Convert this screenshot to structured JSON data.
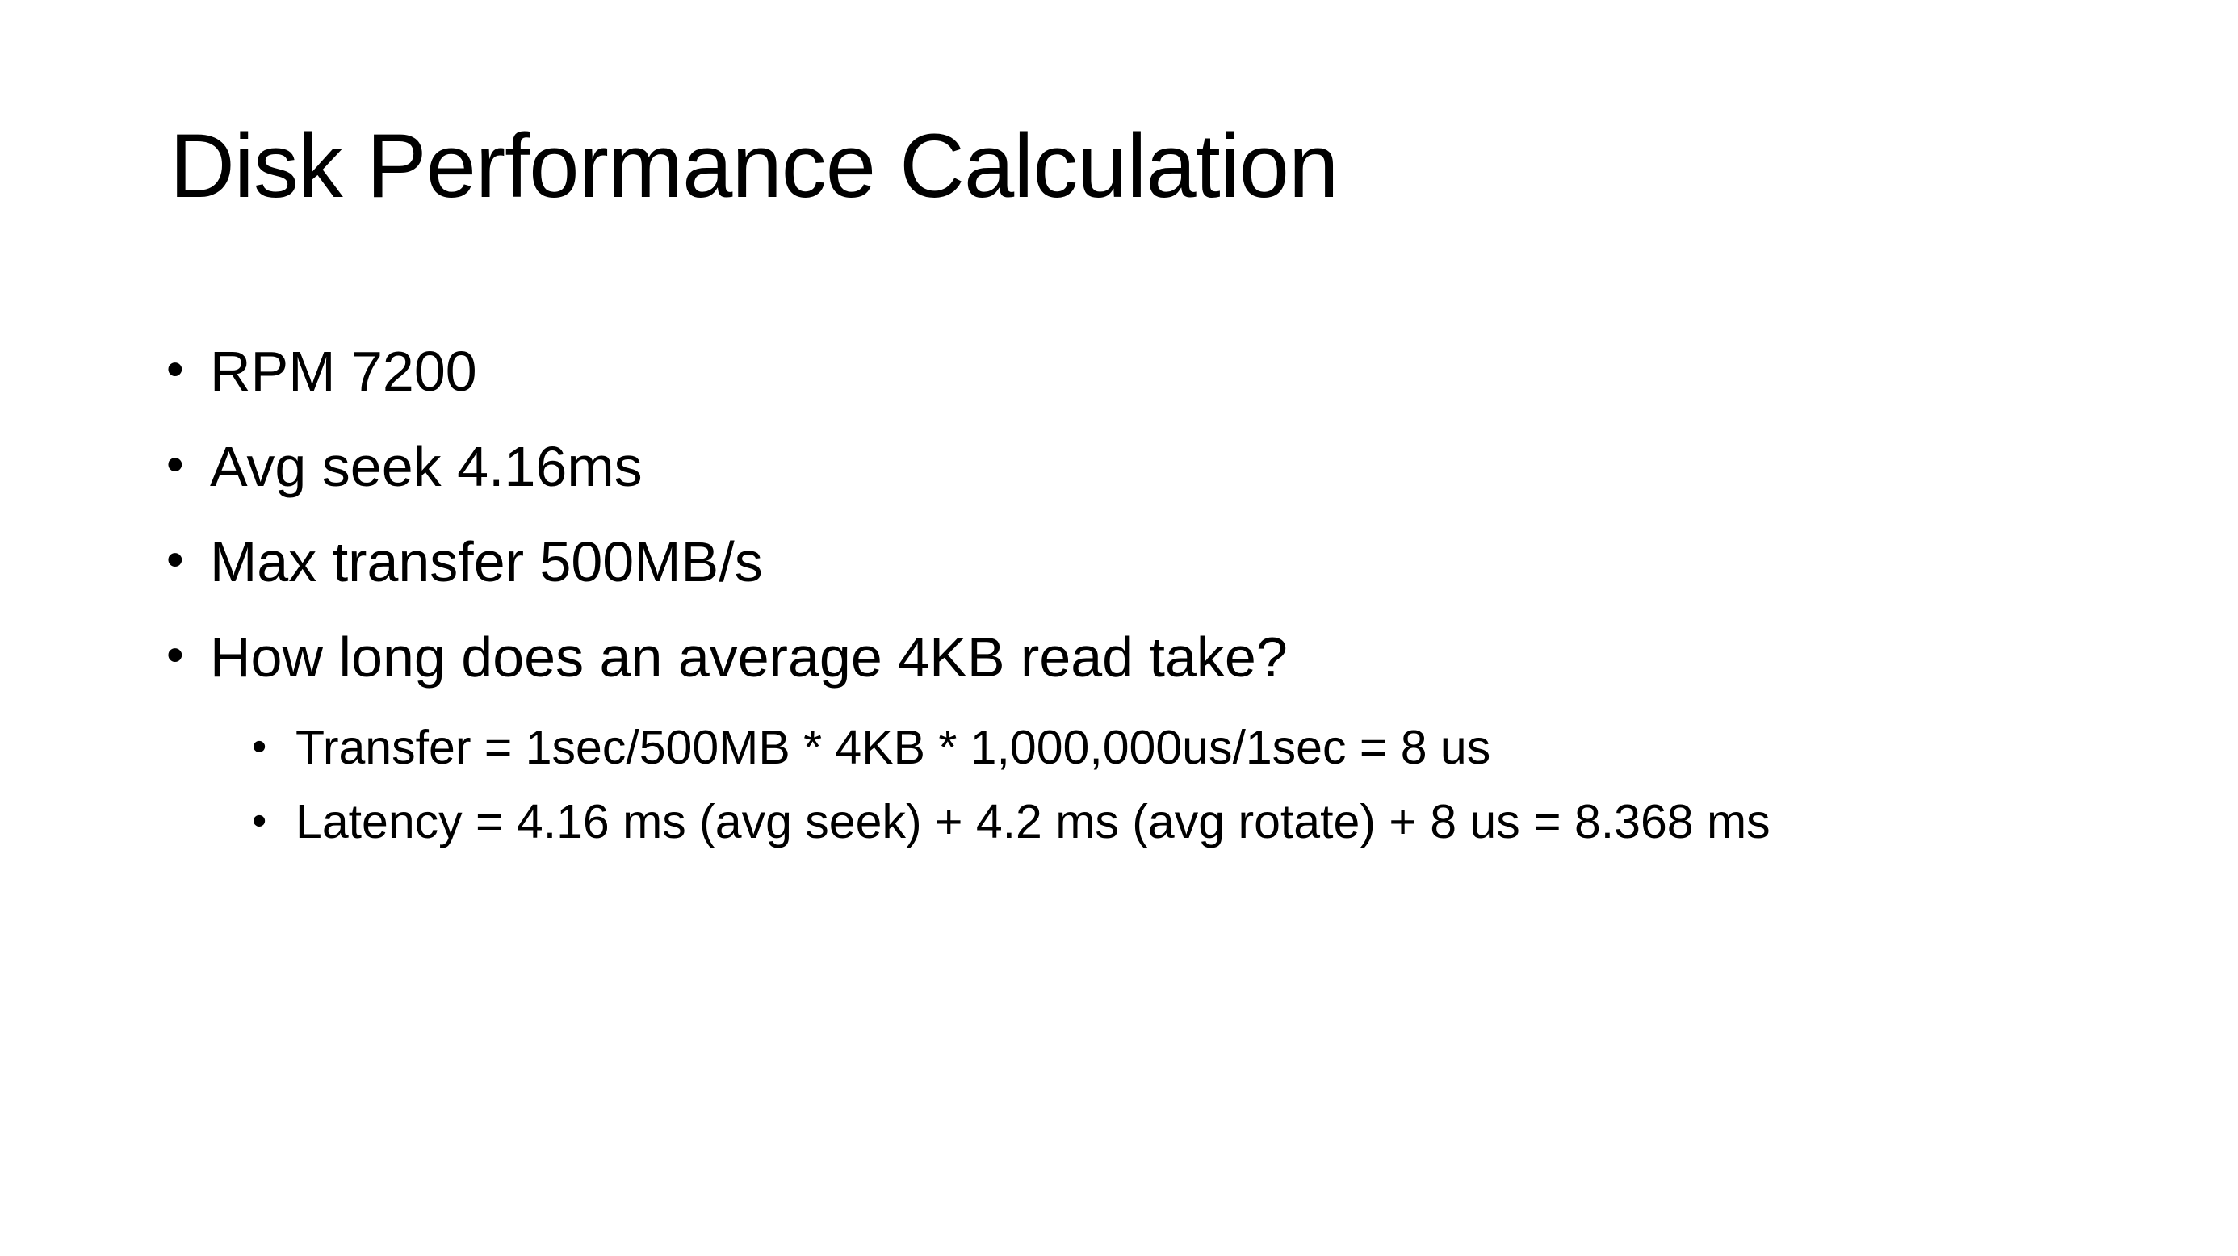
{
  "slide": {
    "title": "Disk Performance Calculation",
    "bullets": [
      {
        "level": 1,
        "text": "RPM 7200"
      },
      {
        "level": 1,
        "text": "Avg seek 4.16ms"
      },
      {
        "level": 1,
        "text": "Max transfer 500MB/s"
      },
      {
        "level": 1,
        "text": "How long does an average 4KB read take?"
      },
      {
        "level": 2,
        "text": "Transfer = 1sec/500MB * 4KB * 1,000,000us/1sec = 8 us"
      },
      {
        "level": 2,
        "text": "Latency = 4.16 ms (avg seek) + 4.2 ms (avg rotate) + 8 us = 8.368 ms"
      }
    ],
    "bullet_glyph": "•",
    "colors": {
      "background": "#ffffff",
      "text": "#000000"
    }
  }
}
